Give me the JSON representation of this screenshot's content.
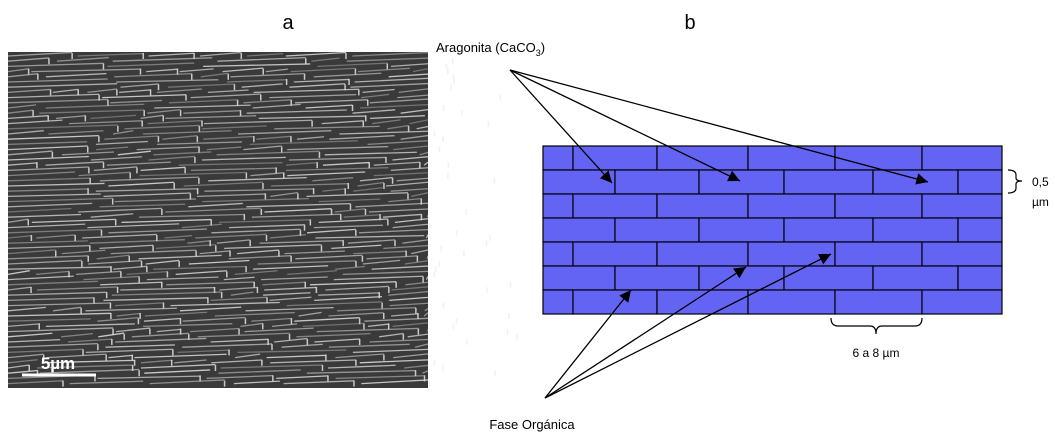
{
  "panel_a": {
    "label": "a",
    "scale_bar": "5µm"
  },
  "panel_b": {
    "label": "b",
    "aragonita": {
      "text": "Aragonita (CaCO",
      "subscript": "3",
      "suffix": ")"
    },
    "fase_organica": "Fase Orgánica",
    "thickness": {
      "value": "0,5",
      "unit": "µm"
    },
    "length": "6 a 8  µm"
  }
}
